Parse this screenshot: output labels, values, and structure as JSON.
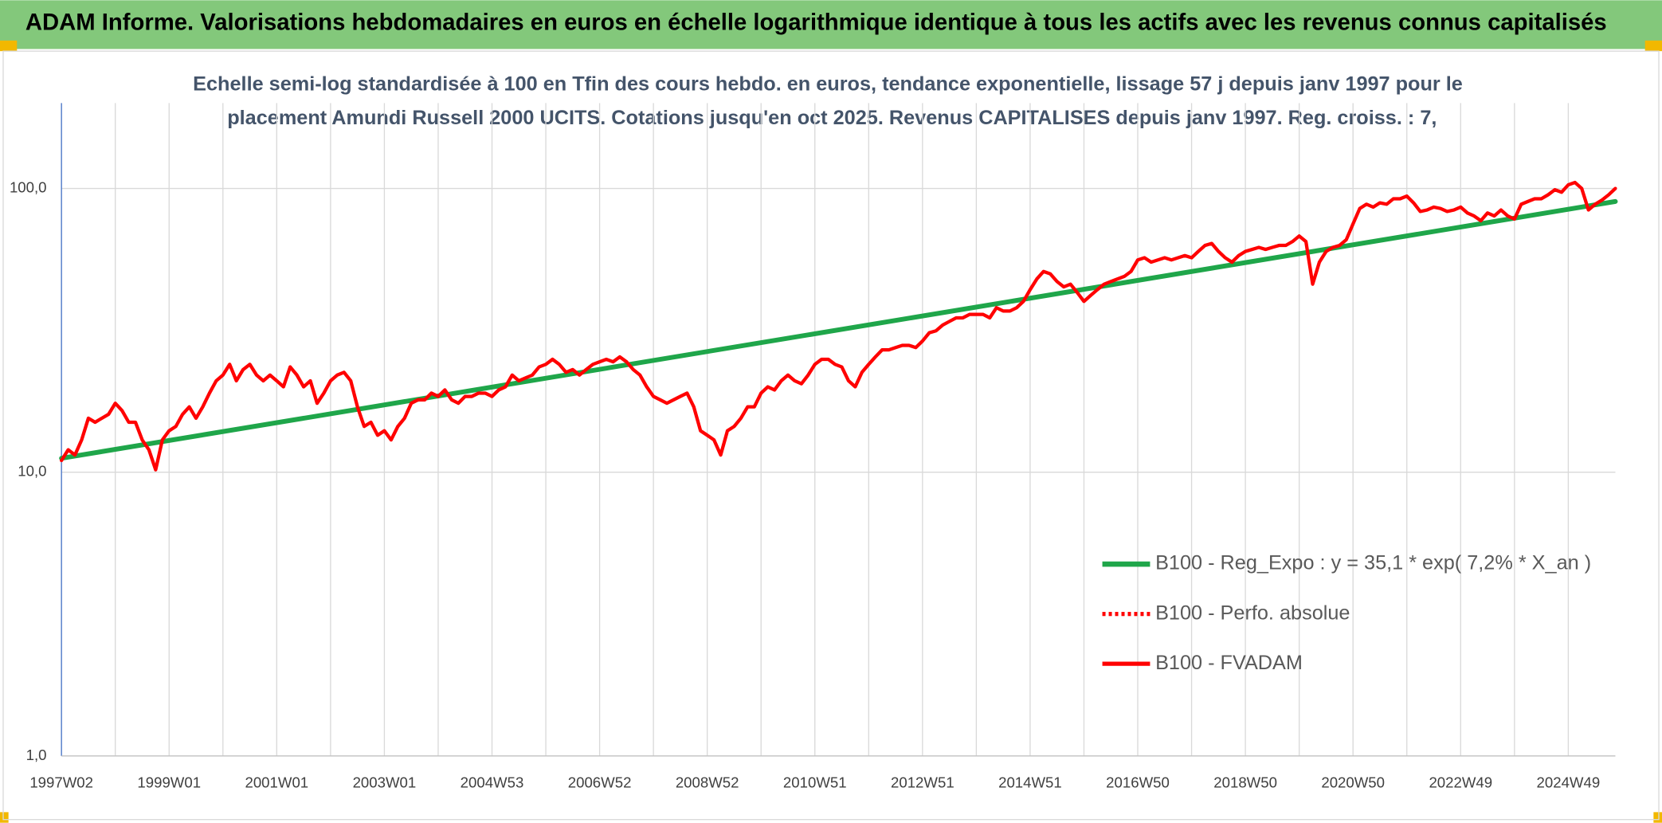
{
  "header": {
    "title": "ADAM Informe. Valorisations hebdomadaires en euros en échelle logarithmique identique à tous les actifs avec les revenus connus capitalisés"
  },
  "chart_data": {
    "type": "line",
    "title": [
      "Echelle semi-log standardisée à 100 en Tfin des cours hebdo. en euros, tendance exponentielle, lissage 57 j depuis janv 1997 pour le",
      "placement Amundi Russell 2000 UCITS. Cotations jusqu'en oct 2025. Revenus CAPITALISES depuis janv 1997. Reg. croiss. : 7,"
    ],
    "log_scale": true,
    "grid": true,
    "ylim": [
      1,
      200
    ],
    "yticks": [
      {
        "value": 1,
        "label": "1,0"
      },
      {
        "value": 10,
        "label": "10,0"
      },
      {
        "value": 100,
        "label": "100,0"
      }
    ],
    "categories": [
      "1997W02",
      null,
      null,
      null,
      null,
      null,
      null,
      null,
      null,
      null,
      null,
      null,
      null,
      null,
      null,
      null,
      "1999W01",
      null,
      null,
      null,
      null,
      null,
      null,
      null,
      null,
      null,
      null,
      null,
      null,
      null,
      null,
      null,
      "2001W01",
      null,
      null,
      null,
      null,
      null,
      null,
      null,
      null,
      null,
      null,
      null,
      null,
      null,
      null,
      null,
      "2003W01",
      null,
      null,
      null,
      null,
      null,
      null,
      null,
      null,
      null,
      null,
      null,
      null,
      null,
      null,
      null,
      "2004W53",
      null,
      null,
      null,
      null,
      null,
      null,
      null,
      null,
      null,
      null,
      null,
      null,
      null,
      null,
      null,
      "2006W52",
      null,
      null,
      null,
      null,
      null,
      null,
      null,
      null,
      null,
      null,
      null,
      null,
      null,
      null,
      null,
      "2008W52",
      null,
      null,
      null,
      null,
      null,
      null,
      null,
      null,
      null,
      null,
      null,
      null,
      null,
      null,
      null,
      "2010W51",
      null,
      null,
      null,
      null,
      null,
      null,
      null,
      null,
      null,
      null,
      null,
      null,
      null,
      null,
      null,
      "2012W51",
      null,
      null,
      null,
      null,
      null,
      null,
      null,
      null,
      null,
      null,
      null,
      null,
      null,
      null,
      null,
      "2014W51",
      null,
      null,
      null,
      null,
      null,
      null,
      null,
      null,
      null,
      null,
      null,
      null,
      null,
      null,
      null,
      "2016W50",
      null,
      null,
      null,
      null,
      null,
      null,
      null,
      null,
      null,
      null,
      null,
      null,
      null,
      null,
      null,
      "2018W50",
      null,
      null,
      null,
      null,
      null,
      null,
      null,
      null,
      null,
      null,
      null,
      null,
      null,
      null,
      null,
      "2020W50",
      null,
      null,
      null,
      null,
      null,
      null,
      null,
      null,
      null,
      null,
      null,
      null,
      null,
      null,
      null,
      "2022W49",
      null,
      null,
      null,
      null,
      null,
      null,
      null,
      null,
      null,
      null,
      null,
      null,
      null,
      null,
      null,
      "2024W49",
      null,
      null,
      null,
      null,
      null,
      null,
      null
    ],
    "series": [
      {
        "name": "B100 - Reg_Expo : y = 35,1 * exp( 7,2% *  X_an )",
        "color": "#1fa64a",
        "x": [
          0,
          231
        ],
        "values": [
          11.2,
          90
        ]
      },
      {
        "name": "B100 - Perfo. absolue",
        "color": "#ff0000",
        "dash": "dotted"
      },
      {
        "name": "B100 - FVADAM",
        "color": "#ff0000",
        "values": [
          11,
          12,
          11.5,
          13,
          15.5,
          15,
          15.5,
          16,
          17.5,
          16.5,
          15,
          15,
          13,
          12,
          10.2,
          13,
          14,
          14.5,
          16,
          17,
          15.5,
          17,
          19,
          21,
          22,
          24,
          21,
          23,
          24,
          22,
          21,
          22,
          21,
          20,
          23.5,
          22,
          20,
          21,
          17.5,
          19,
          21,
          22,
          22.5,
          21,
          17,
          14.5,
          15,
          13.5,
          14,
          13,
          14.5,
          15.5,
          17.5,
          18,
          18,
          19,
          18.5,
          19.5,
          18,
          17.5,
          18.5,
          18.5,
          19,
          19,
          18.5,
          19.5,
          20,
          22,
          21,
          21.5,
          22,
          23.5,
          24,
          25,
          24,
          22.5,
          23,
          22,
          23,
          24,
          24.5,
          25,
          24.5,
          25.5,
          24.5,
          23,
          22,
          20,
          18.5,
          18,
          17.5,
          18,
          18.5,
          19,
          17,
          14,
          13.5,
          13,
          11.5,
          14,
          14.5,
          15.5,
          17,
          17,
          19,
          20,
          19.5,
          21,
          22,
          21,
          20.5,
          22,
          24,
          25,
          25,
          24,
          23.5,
          21,
          20,
          22.5,
          24,
          25.5,
          27,
          27,
          27.5,
          28,
          28,
          27.5,
          29,
          31,
          31.5,
          33,
          34,
          35,
          35,
          36,
          36,
          36,
          35,
          38,
          37,
          37,
          38,
          40,
          44,
          48,
          51,
          50,
          47,
          45,
          46,
          43,
          40,
          42,
          44,
          46,
          47,
          48,
          49,
          51,
          56,
          57,
          55,
          56,
          57,
          56,
          57,
          58,
          57,
          60,
          63,
          64,
          60,
          57,
          55,
          58,
          60,
          61,
          62,
          61,
          62,
          63,
          63,
          65,
          68,
          65,
          46,
          55,
          60,
          62,
          63,
          66,
          75,
          85,
          88,
          86,
          89,
          88,
          92,
          92,
          94,
          89,
          83,
          84,
          86,
          85,
          83,
          84,
          86,
          82,
          80,
          77,
          82,
          80,
          84,
          80,
          78,
          88,
          90,
          92,
          92,
          95,
          99,
          97,
          103,
          105,
          100,
          84,
          88,
          91,
          95,
          100
        ]
      }
    ]
  }
}
